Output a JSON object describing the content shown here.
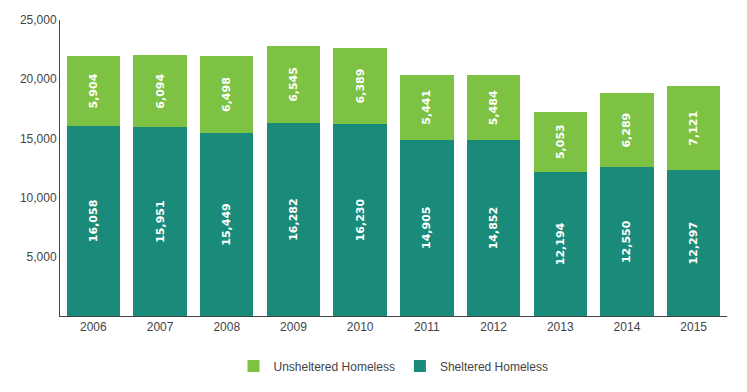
{
  "chart_data": {
    "type": "bar",
    "stacked": true,
    "categories": [
      "2006",
      "2007",
      "2008",
      "2009",
      "2010",
      "2011",
      "2012",
      "2013",
      "2014",
      "2015"
    ],
    "series": [
      {
        "name": "Sheltered Homeless",
        "color": "#1A8B7A",
        "values": [
          16058,
          15951,
          15449,
          16282,
          16230,
          14905,
          14852,
          12194,
          12550,
          12297
        ],
        "value_labels": [
          "16,058",
          "15,951",
          "15,449",
          "16,282",
          "16,230",
          "14,905",
          "14,852",
          "12,194",
          "12,550",
          "12,297"
        ]
      },
      {
        "name": "Unsheltered Homeless",
        "color": "#7DC242",
        "values": [
          5904,
          6094,
          6498,
          6545,
          6389,
          5441,
          5484,
          5053,
          6289,
          7121
        ],
        "value_labels": [
          "5,904",
          "6,094",
          "6,498",
          "6,545",
          "6,389",
          "5,441",
          "5,484",
          "5,053",
          "6,289",
          "7,121"
        ]
      }
    ],
    "ylim": [
      0,
      25000
    ],
    "yticks": [
      {
        "value": 5000,
        "label": "5,000"
      },
      {
        "value": 10000,
        "label": "10,000"
      },
      {
        "value": 15000,
        "label": "15,000"
      },
      {
        "value": 20000,
        "label": "20,000"
      },
      {
        "value": 25000,
        "label": "25,000"
      }
    ],
    "grid": false,
    "legend": "bottom",
    "data_labels": true
  }
}
